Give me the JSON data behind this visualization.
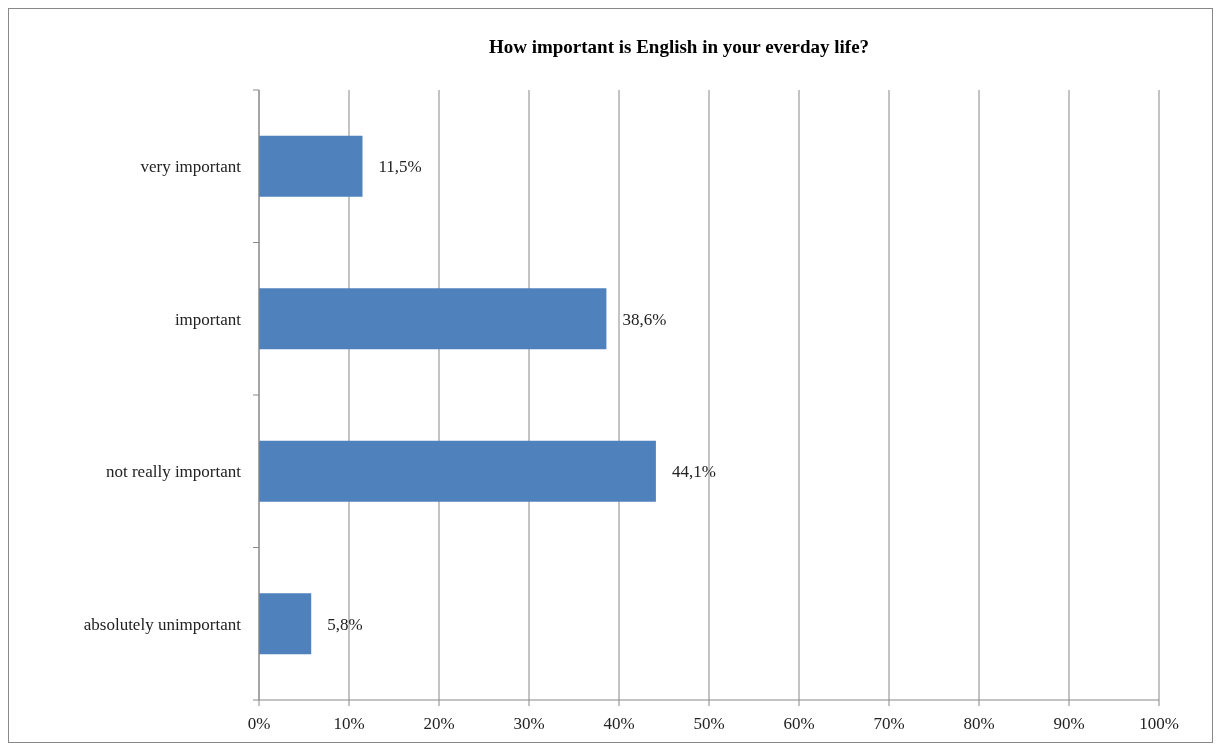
{
  "chart_data": {
    "type": "bar",
    "orientation": "horizontal",
    "title": "How important is English in your everday life?",
    "categories": [
      "very important",
      "important",
      "not really important",
      "absolutely unimportant"
    ],
    "values": [
      11.5,
      38.6,
      44.1,
      5.8
    ],
    "value_labels": [
      "11,5%",
      "38,6%",
      "44,1%",
      "5,8%"
    ],
    "color": "#4f81bd",
    "xlim": [
      0,
      100
    ],
    "xticks": [
      {
        "value": 0,
        "label": "0%"
      },
      {
        "value": 10,
        "label": "10%"
      },
      {
        "value": 20,
        "label": "20%"
      },
      {
        "value": 30,
        "label": "30%"
      },
      {
        "value": 40,
        "label": "40%"
      },
      {
        "value": 50,
        "label": "50%"
      },
      {
        "value": 60,
        "label": "60%"
      },
      {
        "value": 70,
        "label": "70%"
      },
      {
        "value": 80,
        "label": "80%"
      },
      {
        "value": 90,
        "label": "90%"
      },
      {
        "value": 100,
        "label": "100%"
      }
    ],
    "grid": "x"
  }
}
